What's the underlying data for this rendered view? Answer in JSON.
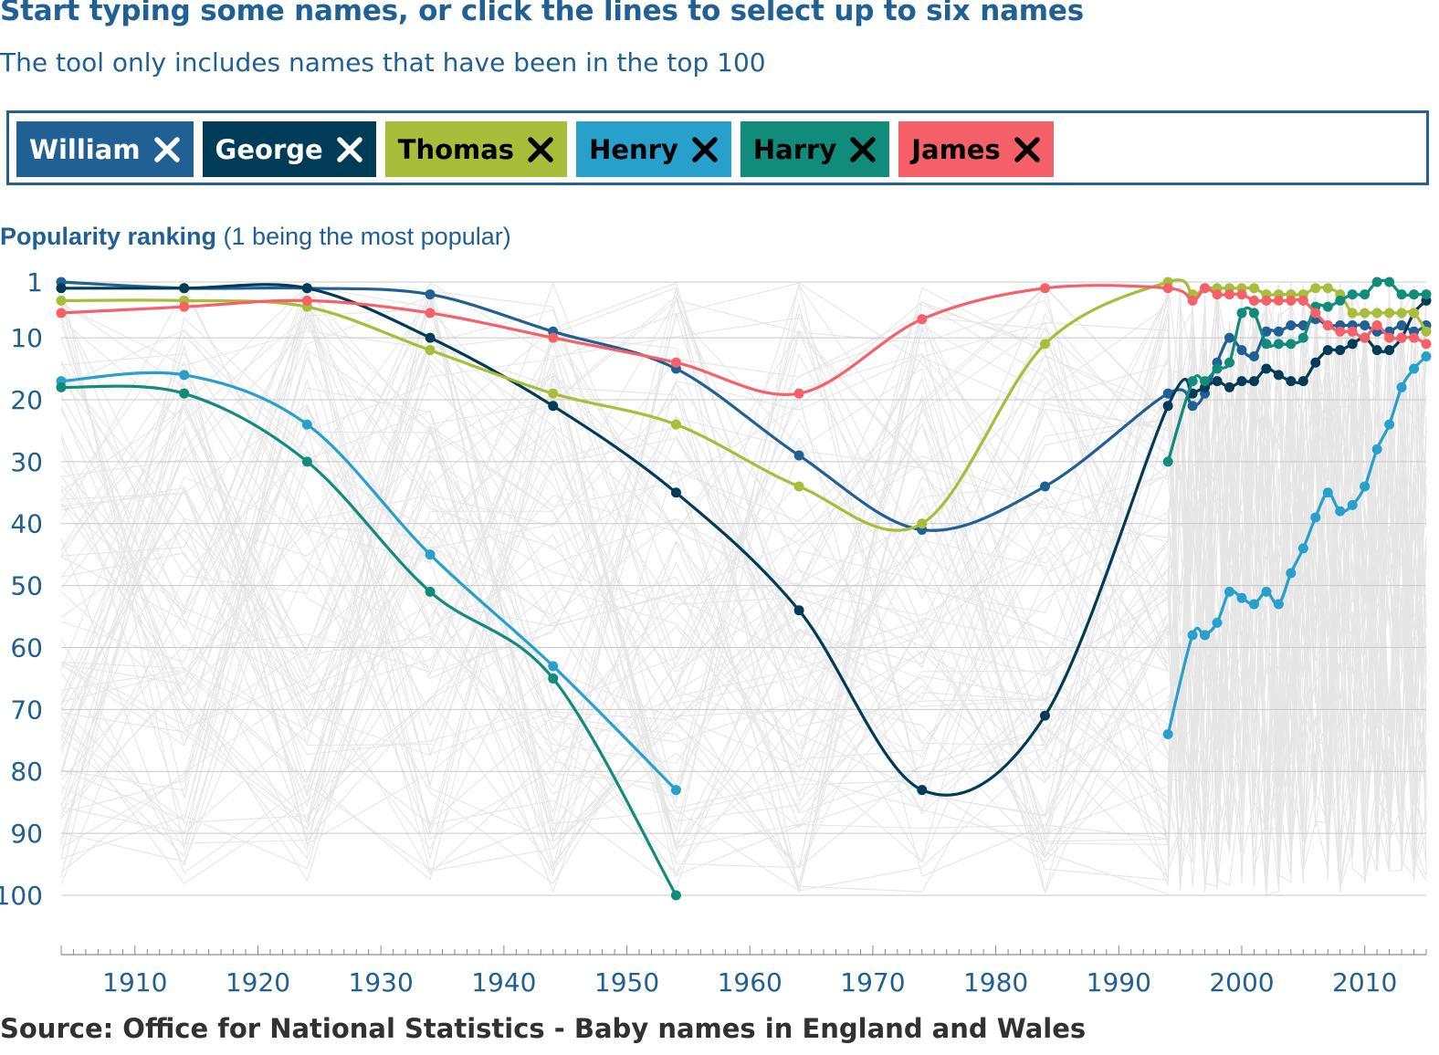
{
  "header": {
    "title": "Start typing some names, or click the lines to select up to six names",
    "subtitle": "The tool only includes names that have been in the top 100"
  },
  "selector": {
    "chips": [
      {
        "label": "William",
        "color": "#206095",
        "text_color": "#ffffff"
      },
      {
        "label": "George",
        "color": "#003c57",
        "text_color": "#ffffff"
      },
      {
        "label": "Thomas",
        "color": "#a8bd3a",
        "text_color": "#000000"
      },
      {
        "label": "Henry",
        "color": "#27a0cc",
        "text_color": "#000000"
      },
      {
        "label": "Harry",
        "color": "#118c7b",
        "text_color": "#000000"
      },
      {
        "label": "James",
        "color": "#f66068",
        "text_color": "#000000"
      }
    ],
    "remove_icon": "close-icon"
  },
  "chart_title": {
    "bold": "Popularity ranking",
    "rest": " (1 being the most popular)"
  },
  "source": "Source: Office for National Statistics - Baby names in England and Wales",
  "chart_data": {
    "type": "line",
    "title": "Popularity ranking (1 being the most popular)",
    "xlabel": "",
    "ylabel": "",
    "x_ticks": [
      1910,
      1920,
      1930,
      1940,
      1950,
      1960,
      1970,
      1980,
      1990,
      2000,
      2010
    ],
    "y_ticks": [
      1,
      10,
      20,
      30,
      40,
      50,
      60,
      70,
      80,
      90,
      100
    ],
    "xlim": [
      1904,
      2015
    ],
    "ylim": [
      1,
      100
    ],
    "y_inverted": true,
    "grid": true,
    "background_lines": "all other names that have been in the top 100 (light grey)",
    "series": [
      {
        "name": "William",
        "color": "#206095",
        "points": [
          [
            1904,
            1
          ],
          [
            1914,
            2
          ],
          [
            1924,
            2
          ],
          [
            1934,
            3
          ],
          [
            1944,
            9
          ],
          [
            1954,
            15
          ],
          [
            1964,
            29
          ],
          [
            1974,
            41
          ],
          [
            1984,
            34
          ],
          [
            1994,
            19
          ],
          [
            1996,
            21
          ],
          [
            1997,
            19
          ],
          [
            1998,
            14
          ],
          [
            1999,
            10
          ],
          [
            2000,
            12
          ],
          [
            2001,
            13
          ],
          [
            2002,
            9
          ],
          [
            2003,
            9
          ],
          [
            2004,
            8
          ],
          [
            2005,
            8
          ],
          [
            2006,
            7
          ],
          [
            2007,
            8
          ],
          [
            2008,
            8
          ],
          [
            2009,
            8
          ],
          [
            2010,
            8
          ],
          [
            2011,
            9
          ],
          [
            2012,
            9
          ],
          [
            2013,
            8
          ],
          [
            2014,
            9
          ],
          [
            2015,
            8
          ]
        ]
      },
      {
        "name": "George",
        "color": "#003c57",
        "points": [
          [
            1904,
            2
          ],
          [
            1914,
            2
          ],
          [
            1924,
            2
          ],
          [
            1934,
            10
          ],
          [
            1944,
            21
          ],
          [
            1954,
            35
          ],
          [
            1964,
            54
          ],
          [
            1974,
            83
          ],
          [
            1984,
            71
          ],
          [
            1994,
            21
          ],
          [
            1996,
            19
          ],
          [
            1997,
            18
          ],
          [
            1998,
            17
          ],
          [
            1999,
            18
          ],
          [
            2000,
            17
          ],
          [
            2001,
            17
          ],
          [
            2002,
            15
          ],
          [
            2003,
            16
          ],
          [
            2004,
            17
          ],
          [
            2005,
            17
          ],
          [
            2006,
            14
          ],
          [
            2007,
            12
          ],
          [
            2008,
            12
          ],
          [
            2009,
            11
          ],
          [
            2010,
            10
          ],
          [
            2011,
            12
          ],
          [
            2012,
            12
          ],
          [
            2013,
            10
          ],
          [
            2014,
            6
          ],
          [
            2015,
            4
          ]
        ]
      },
      {
        "name": "Thomas",
        "color": "#a8bd3a",
        "points": [
          [
            1904,
            4
          ],
          [
            1914,
            4
          ],
          [
            1924,
            5
          ],
          [
            1934,
            12
          ],
          [
            1944,
            19
          ],
          [
            1954,
            24
          ],
          [
            1964,
            34
          ],
          [
            1974,
            40
          ],
          [
            1984,
            11
          ],
          [
            1994,
            1
          ],
          [
            1996,
            3
          ],
          [
            1997,
            2
          ],
          [
            1998,
            2
          ],
          [
            1999,
            2
          ],
          [
            2000,
            2
          ],
          [
            2001,
            2
          ],
          [
            2002,
            3
          ],
          [
            2003,
            3
          ],
          [
            2004,
            3
          ],
          [
            2005,
            3
          ],
          [
            2006,
            2
          ],
          [
            2007,
            2
          ],
          [
            2008,
            3
          ],
          [
            2009,
            6
          ],
          [
            2010,
            6
          ],
          [
            2011,
            6
          ],
          [
            2012,
            6
          ],
          [
            2013,
            6
          ],
          [
            2014,
            6
          ],
          [
            2015,
            9
          ]
        ]
      },
      {
        "name": "Henry",
        "color": "#27a0cc",
        "points": [
          [
            1904,
            17
          ],
          [
            1914,
            16
          ],
          [
            1924,
            24
          ],
          [
            1934,
            45
          ],
          [
            1944,
            63
          ],
          [
            1954,
            83
          ],
          [
            1994,
            74
          ],
          [
            1996,
            58
          ],
          [
            1997,
            58
          ],
          [
            1998,
            56
          ],
          [
            1999,
            51
          ],
          [
            2000,
            52
          ],
          [
            2001,
            53
          ],
          [
            2002,
            51
          ],
          [
            2003,
            53
          ],
          [
            2004,
            48
          ],
          [
            2005,
            44
          ],
          [
            2006,
            39
          ],
          [
            2007,
            35
          ],
          [
            2008,
            38
          ],
          [
            2009,
            37
          ],
          [
            2010,
            34
          ],
          [
            2011,
            28
          ],
          [
            2012,
            24
          ],
          [
            2013,
            18
          ],
          [
            2014,
            15
          ],
          [
            2015,
            13
          ]
        ]
      },
      {
        "name": "Harry",
        "color": "#118c7b",
        "points": [
          [
            1904,
            18
          ],
          [
            1914,
            19
          ],
          [
            1924,
            30
          ],
          [
            1934,
            51
          ],
          [
            1944,
            65
          ],
          [
            1954,
            100
          ],
          [
            1994,
            30
          ],
          [
            1996,
            17
          ],
          [
            1997,
            17
          ],
          [
            1998,
            15
          ],
          [
            1999,
            14
          ],
          [
            2000,
            6
          ],
          [
            2001,
            6
          ],
          [
            2002,
            11
          ],
          [
            2003,
            11
          ],
          [
            2004,
            11
          ],
          [
            2005,
            10
          ],
          [
            2006,
            5
          ],
          [
            2007,
            5
          ],
          [
            2008,
            4
          ],
          [
            2009,
            3
          ],
          [
            2010,
            3
          ],
          [
            2011,
            1
          ],
          [
            2012,
            1
          ],
          [
            2013,
            3
          ],
          [
            2014,
            3
          ],
          [
            2015,
            3
          ]
        ]
      },
      {
        "name": "James",
        "color": "#f66068",
        "points": [
          [
            1904,
            6
          ],
          [
            1914,
            5
          ],
          [
            1924,
            4
          ],
          [
            1934,
            6
          ],
          [
            1944,
            10
          ],
          [
            1954,
            14
          ],
          [
            1964,
            19
          ],
          [
            1974,
            7
          ],
          [
            1984,
            2
          ],
          [
            1994,
            2
          ],
          [
            1996,
            4
          ],
          [
            1997,
            2
          ],
          [
            1998,
            3
          ],
          [
            1999,
            3
          ],
          [
            2000,
            3
          ],
          [
            2001,
            4
          ],
          [
            2002,
            4
          ],
          [
            2003,
            4
          ],
          [
            2004,
            4
          ],
          [
            2005,
            4
          ],
          [
            2006,
            6
          ],
          [
            2007,
            8
          ],
          [
            2008,
            9
          ],
          [
            2009,
            9
          ],
          [
            2010,
            10
          ],
          [
            2011,
            8
          ],
          [
            2012,
            10
          ],
          [
            2013,
            10
          ],
          [
            2014,
            10
          ],
          [
            2015,
            11
          ]
        ]
      }
    ]
  }
}
